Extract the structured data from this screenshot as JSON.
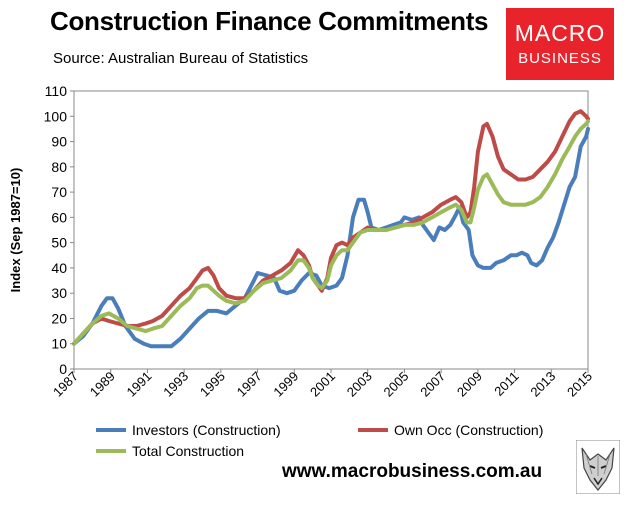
{
  "header": {
    "title": "Construction Finance Commitments",
    "subtitle": "Source: Australian Bureau of Statistics"
  },
  "logo": {
    "line1": "MACRO",
    "line2": "BUSINESS"
  },
  "footer": {
    "website": "www.macrobusiness.com.au",
    "mascot_icon": "wolf-head-icon"
  },
  "chart_data": {
    "type": "line",
    "title": "Construction Finance Commitments",
    "ylabel": "Index (Sep 1987=10)",
    "xlabel": "",
    "xlim": [
      1987,
      2015
    ],
    "ylim": [
      0,
      110
    ],
    "y_ticks": [
      "0",
      "10",
      "20",
      "30",
      "40",
      "50",
      "60",
      "70",
      "80",
      "90",
      "100",
      "110"
    ],
    "x_ticks": [
      "1987",
      "1989",
      "1991",
      "1993",
      "1995",
      "1997",
      "1999",
      "2001",
      "2003",
      "2005",
      "2007",
      "2009",
      "2011",
      "2013",
      "2015"
    ],
    "grid": false,
    "legend": {
      "placement": "bottom"
    },
    "series": [
      {
        "name": "Investors (Construction)",
        "color": "#4a7ebb",
        "points": [
          [
            1987.0,
            10
          ],
          [
            1987.5,
            13
          ],
          [
            1988.0,
            18
          ],
          [
            1988.5,
            25
          ],
          [
            1988.8,
            28
          ],
          [
            1989.1,
            28
          ],
          [
            1989.4,
            24
          ],
          [
            1989.8,
            17
          ],
          [
            1990.3,
            12
          ],
          [
            1990.8,
            10
          ],
          [
            1991.2,
            9
          ],
          [
            1991.8,
            9
          ],
          [
            1992.3,
            9
          ],
          [
            1992.8,
            12
          ],
          [
            1993.3,
            16
          ],
          [
            1993.8,
            20
          ],
          [
            1994.3,
            23
          ],
          [
            1994.8,
            23
          ],
          [
            1995.3,
            22
          ],
          [
            1995.8,
            25
          ],
          [
            1996.3,
            28
          ],
          [
            1996.8,
            35
          ],
          [
            1997.0,
            38
          ],
          [
            1997.5,
            37
          ],
          [
            1997.9,
            36
          ],
          [
            1998.2,
            31
          ],
          [
            1998.6,
            30
          ],
          [
            1999.0,
            31
          ],
          [
            1999.4,
            35
          ],
          [
            1999.8,
            38
          ],
          [
            2000.2,
            37
          ],
          [
            2000.5,
            33
          ],
          [
            2000.9,
            32
          ],
          [
            2001.3,
            33
          ],
          [
            2001.6,
            36
          ],
          [
            2001.9,
            45
          ],
          [
            2002.2,
            60
          ],
          [
            2002.5,
            67
          ],
          [
            2002.8,
            67
          ],
          [
            2003.0,
            62
          ],
          [
            2003.2,
            56
          ],
          [
            2003.6,
            55
          ],
          [
            2004.0,
            56
          ],
          [
            2004.4,
            57
          ],
          [
            2004.8,
            58
          ],
          [
            2005.0,
            60
          ],
          [
            2005.4,
            59
          ],
          [
            2005.8,
            60
          ],
          [
            2006.0,
            57
          ],
          [
            2006.3,
            54
          ],
          [
            2006.6,
            51
          ],
          [
            2006.9,
            56
          ],
          [
            2007.2,
            55
          ],
          [
            2007.5,
            57
          ],
          [
            2007.8,
            61
          ],
          [
            2008.0,
            64
          ],
          [
            2008.2,
            58
          ],
          [
            2008.5,
            55
          ],
          [
            2008.7,
            45
          ],
          [
            2009.0,
            41
          ],
          [
            2009.3,
            40
          ],
          [
            2009.7,
            40
          ],
          [
            2010.0,
            42
          ],
          [
            2010.4,
            43
          ],
          [
            2010.8,
            45
          ],
          [
            2011.1,
            45
          ],
          [
            2011.4,
            46
          ],
          [
            2011.7,
            45
          ],
          [
            2011.9,
            42
          ],
          [
            2012.2,
            41
          ],
          [
            2012.5,
            43
          ],
          [
            2012.8,
            48
          ],
          [
            2013.1,
            52
          ],
          [
            2013.4,
            58
          ],
          [
            2013.7,
            65
          ],
          [
            2014.0,
            72
          ],
          [
            2014.3,
            76
          ],
          [
            2014.6,
            88
          ],
          [
            2014.9,
            92
          ],
          [
            2015.0,
            95
          ]
        ]
      },
      {
        "name": "Own Occ (Construction)",
        "color": "#be4b48",
        "points": [
          [
            1987.0,
            10
          ],
          [
            1987.5,
            14
          ],
          [
            1988.0,
            18
          ],
          [
            1988.5,
            20
          ],
          [
            1988.9,
            19
          ],
          [
            1989.4,
            18
          ],
          [
            1989.9,
            17
          ],
          [
            1990.4,
            17
          ],
          [
            1990.9,
            18
          ],
          [
            1991.3,
            19
          ],
          [
            1991.8,
            21
          ],
          [
            1992.3,
            25
          ],
          [
            1992.8,
            29
          ],
          [
            1993.3,
            32
          ],
          [
            1993.7,
            36
          ],
          [
            1994.0,
            39
          ],
          [
            1994.3,
            40
          ],
          [
            1994.6,
            37
          ],
          [
            1994.9,
            32
          ],
          [
            1995.3,
            29
          ],
          [
            1995.8,
            28
          ],
          [
            1996.3,
            28
          ],
          [
            1996.8,
            31
          ],
          [
            1997.3,
            35
          ],
          [
            1997.8,
            37
          ],
          [
            1998.3,
            39
          ],
          [
            1998.8,
            42
          ],
          [
            1999.2,
            47
          ],
          [
            1999.5,
            45
          ],
          [
            1999.8,
            41
          ],
          [
            2000.0,
            36
          ],
          [
            2000.3,
            33
          ],
          [
            2000.5,
            31
          ],
          [
            2000.8,
            36
          ],
          [
            2001.0,
            44
          ],
          [
            2001.3,
            49
          ],
          [
            2001.6,
            50
          ],
          [
            2001.9,
            49
          ],
          [
            2002.2,
            52
          ],
          [
            2002.6,
            54
          ],
          [
            2003.0,
            56
          ],
          [
            2003.5,
            55
          ],
          [
            2004.0,
            55
          ],
          [
            2004.5,
            56
          ],
          [
            2005.0,
            57
          ],
          [
            2005.5,
            58
          ],
          [
            2006.0,
            60
          ],
          [
            2006.5,
            62
          ],
          [
            2007.0,
            65
          ],
          [
            2007.5,
            67
          ],
          [
            2007.8,
            68
          ],
          [
            2008.1,
            66
          ],
          [
            2008.4,
            60
          ],
          [
            2008.6,
            62
          ],
          [
            2008.8,
            72
          ],
          [
            2009.0,
            86
          ],
          [
            2009.3,
            96
          ],
          [
            2009.5,
            97
          ],
          [
            2009.8,
            92
          ],
          [
            2010.1,
            84
          ],
          [
            2010.4,
            79
          ],
          [
            2010.8,
            77
          ],
          [
            2011.2,
            75
          ],
          [
            2011.6,
            75
          ],
          [
            2012.0,
            76
          ],
          [
            2012.4,
            79
          ],
          [
            2012.8,
            82
          ],
          [
            2013.2,
            86
          ],
          [
            2013.6,
            92
          ],
          [
            2014.0,
            98
          ],
          [
            2014.3,
            101
          ],
          [
            2014.6,
            102
          ],
          [
            2014.9,
            100
          ],
          [
            2015.0,
            99
          ]
        ]
      },
      {
        "name": "Total Construction",
        "color": "#9bbb59",
        "points": [
          [
            1987.0,
            10
          ],
          [
            1987.5,
            14
          ],
          [
            1988.0,
            18
          ],
          [
            1988.5,
            21
          ],
          [
            1988.9,
            22
          ],
          [
            1989.4,
            20
          ],
          [
            1989.9,
            17
          ],
          [
            1990.4,
            16
          ],
          [
            1990.9,
            15
          ],
          [
            1991.3,
            16
          ],
          [
            1991.8,
            17
          ],
          [
            1992.3,
            21
          ],
          [
            1992.8,
            25
          ],
          [
            1993.3,
            28
          ],
          [
            1993.7,
            32
          ],
          [
            1994.0,
            33
          ],
          [
            1994.3,
            33
          ],
          [
            1994.6,
            31
          ],
          [
            1994.9,
            29
          ],
          [
            1995.3,
            27
          ],
          [
            1995.8,
            26
          ],
          [
            1996.3,
            27
          ],
          [
            1996.8,
            31
          ],
          [
            1997.3,
            34
          ],
          [
            1997.8,
            35
          ],
          [
            1998.3,
            36
          ],
          [
            1998.8,
            39
          ],
          [
            1999.2,
            43
          ],
          [
            1999.5,
            43
          ],
          [
            1999.8,
            40
          ],
          [
            2000.0,
            36
          ],
          [
            2000.3,
            33
          ],
          [
            2000.5,
            32
          ],
          [
            2000.8,
            35
          ],
          [
            2001.0,
            41
          ],
          [
            2001.3,
            45
          ],
          [
            2001.6,
            47
          ],
          [
            2001.9,
            47
          ],
          [
            2002.2,
            50
          ],
          [
            2002.6,
            54
          ],
          [
            2003.0,
            55
          ],
          [
            2003.5,
            55
          ],
          [
            2004.0,
            55
          ],
          [
            2004.5,
            56
          ],
          [
            2005.0,
            57
          ],
          [
            2005.5,
            57
          ],
          [
            2006.0,
            58
          ],
          [
            2006.5,
            60
          ],
          [
            2007.0,
            62
          ],
          [
            2007.5,
            64
          ],
          [
            2007.8,
            65
          ],
          [
            2008.1,
            63
          ],
          [
            2008.4,
            58
          ],
          [
            2008.6,
            58
          ],
          [
            2008.8,
            64
          ],
          [
            2009.0,
            71
          ],
          [
            2009.3,
            76
          ],
          [
            2009.5,
            77
          ],
          [
            2009.8,
            73
          ],
          [
            2010.1,
            69
          ],
          [
            2010.4,
            66
          ],
          [
            2010.8,
            65
          ],
          [
            2011.2,
            65
          ],
          [
            2011.6,
            65
          ],
          [
            2012.0,
            66
          ],
          [
            2012.4,
            68
          ],
          [
            2012.8,
            72
          ],
          [
            2013.2,
            77
          ],
          [
            2013.6,
            83
          ],
          [
            2014.0,
            88
          ],
          [
            2014.3,
            92
          ],
          [
            2014.6,
            95
          ],
          [
            2014.9,
            97
          ],
          [
            2015.0,
            98
          ]
        ]
      }
    ]
  }
}
